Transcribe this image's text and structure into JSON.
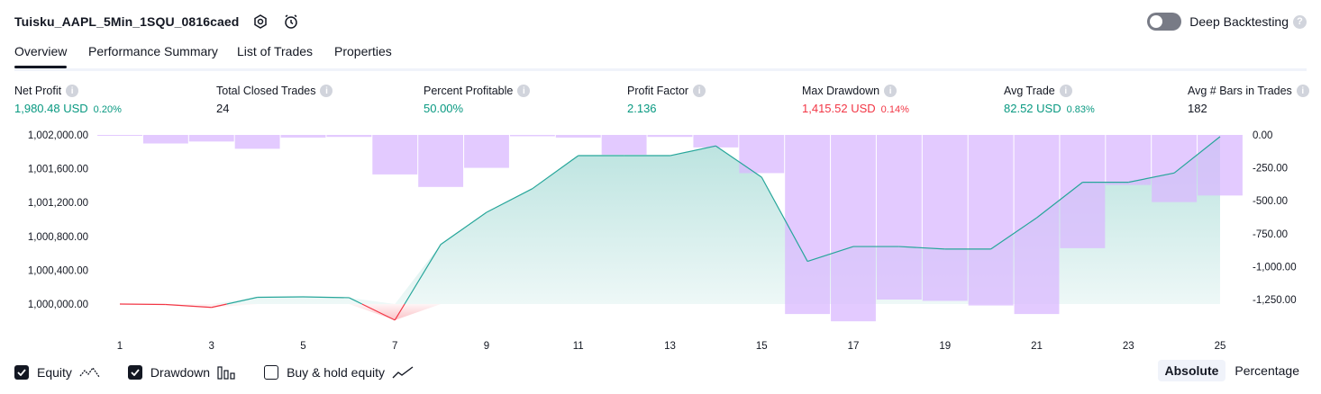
{
  "header": {
    "title": "Tuisku_AAPL_5Min_1SQU_0816caed",
    "deep_backtesting_label": "Deep Backtesting",
    "deep_backtesting_enabled": false
  },
  "tabs": [
    {
      "label": "Overview",
      "active": true
    },
    {
      "label": "Performance Summary",
      "active": false
    },
    {
      "label": "List of Trades",
      "active": false
    },
    {
      "label": "Properties",
      "active": false
    }
  ],
  "metrics": [
    {
      "label": "Net Profit",
      "value": "1,980.48 USD",
      "sub": "0.20%",
      "tone": "pos"
    },
    {
      "label": "Total Closed Trades",
      "value": "24",
      "sub": "",
      "tone": "dark"
    },
    {
      "label": "Percent Profitable",
      "value": "50.00%",
      "sub": "",
      "tone": "pos"
    },
    {
      "label": "Profit Factor",
      "value": "2.136",
      "sub": "",
      "tone": "pos"
    },
    {
      "label": "Max Drawdown",
      "value": "1,415.52 USD",
      "sub": "0.14%",
      "tone": "neg"
    },
    {
      "label": "Avg Trade",
      "value": "82.52 USD",
      "sub": "0.83%",
      "tone": "pos"
    },
    {
      "label": "Avg # Bars in Trades",
      "value": "182",
      "sub": "",
      "tone": "dark"
    }
  ],
  "chart_data": {
    "type": "line",
    "x": [
      1,
      2,
      3,
      4,
      5,
      6,
      7,
      8,
      9,
      10,
      11,
      12,
      13,
      14,
      15,
      16,
      17,
      18,
      19,
      20,
      21,
      22,
      23,
      24,
      25
    ],
    "x_tick_labels": [
      "1",
      "3",
      "5",
      "7",
      "9",
      "11",
      "13",
      "15",
      "17",
      "19",
      "21",
      "23",
      "25"
    ],
    "series": [
      {
        "name": "Equity",
        "type": "line",
        "axis": "left",
        "values": [
          1000000,
          999995,
          999960,
          1000080,
          1000085,
          1000075,
          999810,
          1000705,
          1001085,
          1001365,
          1001755,
          1001755,
          1001755,
          1001870,
          1001500,
          1000505,
          1000680,
          1000680,
          1000650,
          1000650,
          1001020,
          1001440,
          1001440,
          1001550,
          1001980
        ]
      },
      {
        "name": "Drawdown",
        "type": "bar",
        "axis": "right",
        "values": [
          -5,
          -65,
          -50,
          -105,
          -20,
          -15,
          -300,
          -395,
          -250,
          -10,
          -20,
          -150,
          -15,
          -95,
          -290,
          -1360,
          -1415,
          -1250,
          -1260,
          -1295,
          -1360,
          -860,
          -380,
          -510,
          -460
        ]
      }
    ],
    "y_left": {
      "min": 999900,
      "max": 1002000,
      "ticks": [
        1000000,
        1000400,
        1000800,
        1001200,
        1001600,
        1002000
      ],
      "tick_labels": [
        "1,000,000.00",
        "1,000,400.00",
        "1,000,800.00",
        "1,001,200.00",
        "1,001,600.00",
        "1,002,000.00"
      ]
    },
    "y_right": {
      "min": -1440,
      "max": 0,
      "ticks": [
        0,
        -250,
        -500,
        -750,
        -1000,
        -1250
      ],
      "tick_labels": [
        "0.00",
        "-250.00",
        "-500.00",
        "-750.00",
        "-1,000.00",
        "-1,250.00"
      ]
    },
    "colors": {
      "equity_up": "#26a69a",
      "equity_down": "#f23645",
      "drawdown": "#dab8ff"
    },
    "grid": false
  },
  "legend": [
    {
      "label": "Equity",
      "checked": true,
      "icon": "equity-line-icon"
    },
    {
      "label": "Drawdown",
      "checked": true,
      "icon": "drawdown-bars-icon"
    },
    {
      "label": "Buy & hold equity",
      "checked": false,
      "icon": "trend-line-icon"
    }
  ],
  "mode": {
    "absolute_label": "Absolute",
    "percentage_label": "Percentage",
    "selected": "Absolute"
  }
}
